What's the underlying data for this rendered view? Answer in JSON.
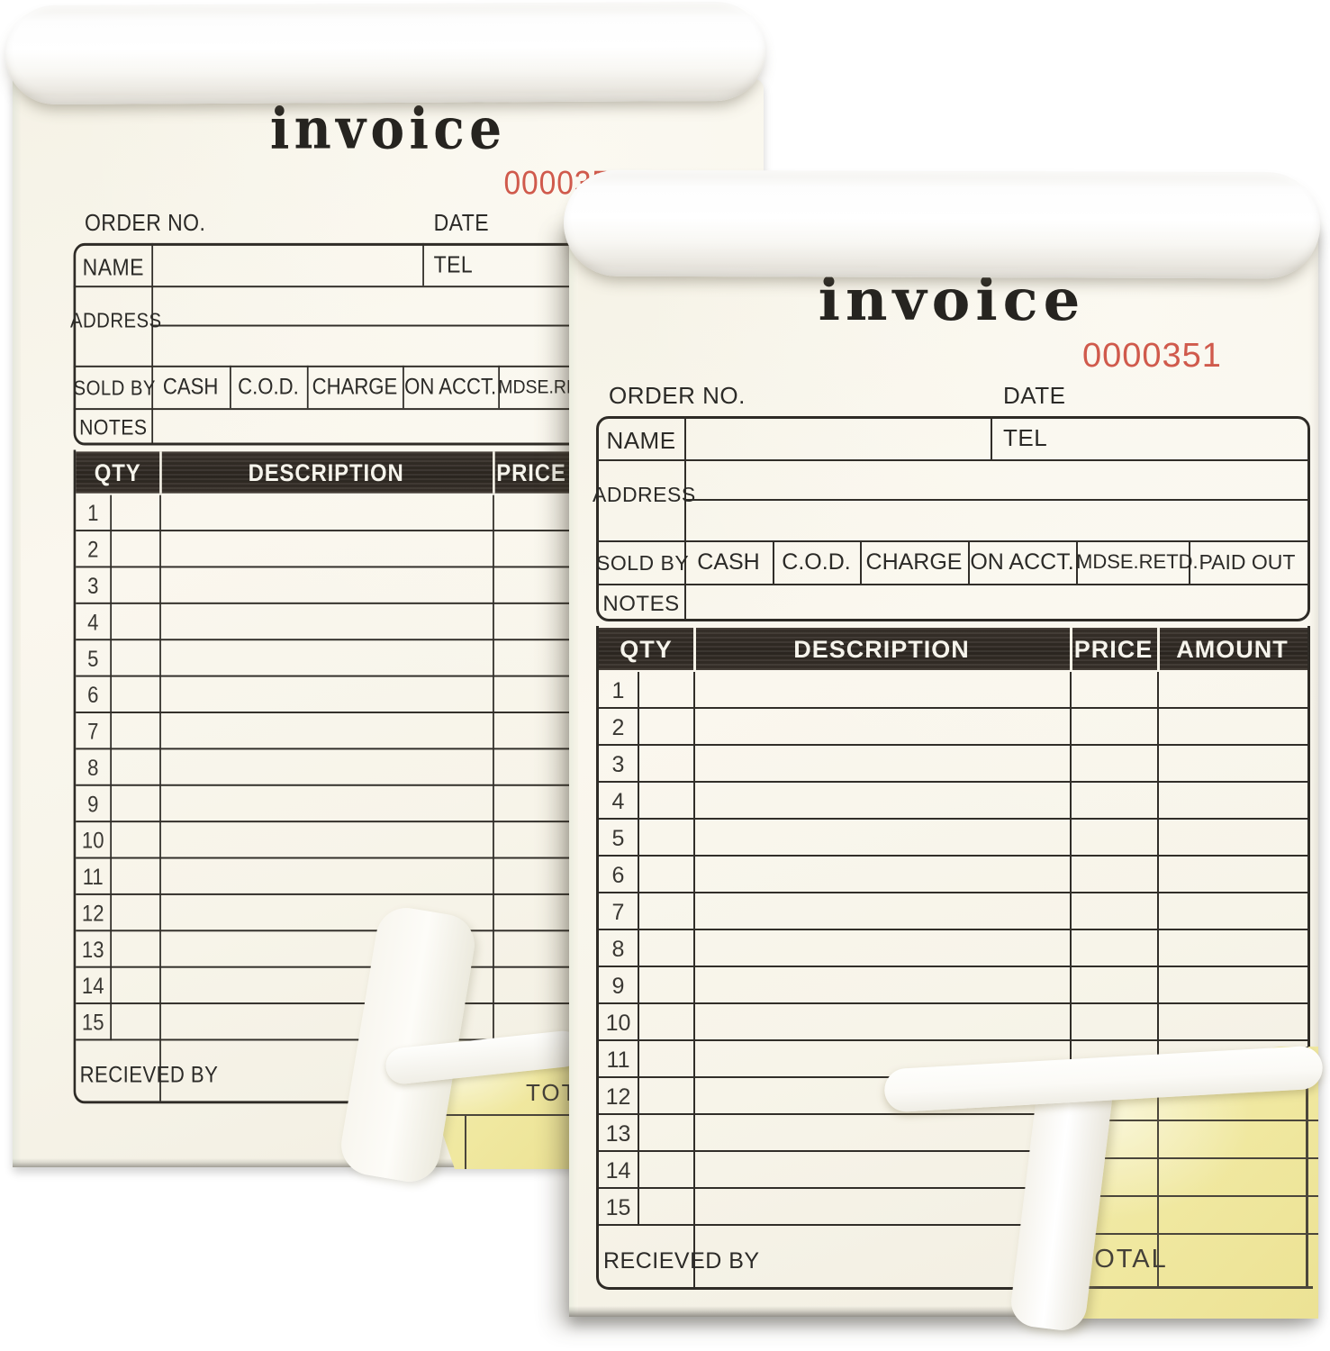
{
  "pad": {
    "title": "invoice",
    "serial": "0000351"
  },
  "form": {
    "order_no": "ORDER NO.",
    "date": "DATE",
    "name": "NAME",
    "tel": "TEL",
    "address": "ADDRESS",
    "sold_by": "SOLD BY",
    "notes": "NOTES",
    "payment_options": [
      "CASH",
      "C.O.D.",
      "CHARGE",
      "ON ACCT.",
      "MDSE.RETD.",
      "PAID OUT"
    ],
    "table_headers": [
      "QTY",
      "DESCRIPTION",
      "PRICE",
      "AMOUNT"
    ],
    "row_numbers": [
      "1",
      "2",
      "3",
      "4",
      "5",
      "6",
      "7",
      "8",
      "9",
      "10",
      "11",
      "12",
      "13",
      "14",
      "15"
    ],
    "received_by": "RECIEVED BY",
    "total": "TOTAL"
  },
  "colors": {
    "paper_cream": "#f7f4e9",
    "duplicate_yellow": "#f0e8a0",
    "serial_red": "#d05a4c",
    "header_bar": "#332c25",
    "rule_line": "#312e29"
  }
}
